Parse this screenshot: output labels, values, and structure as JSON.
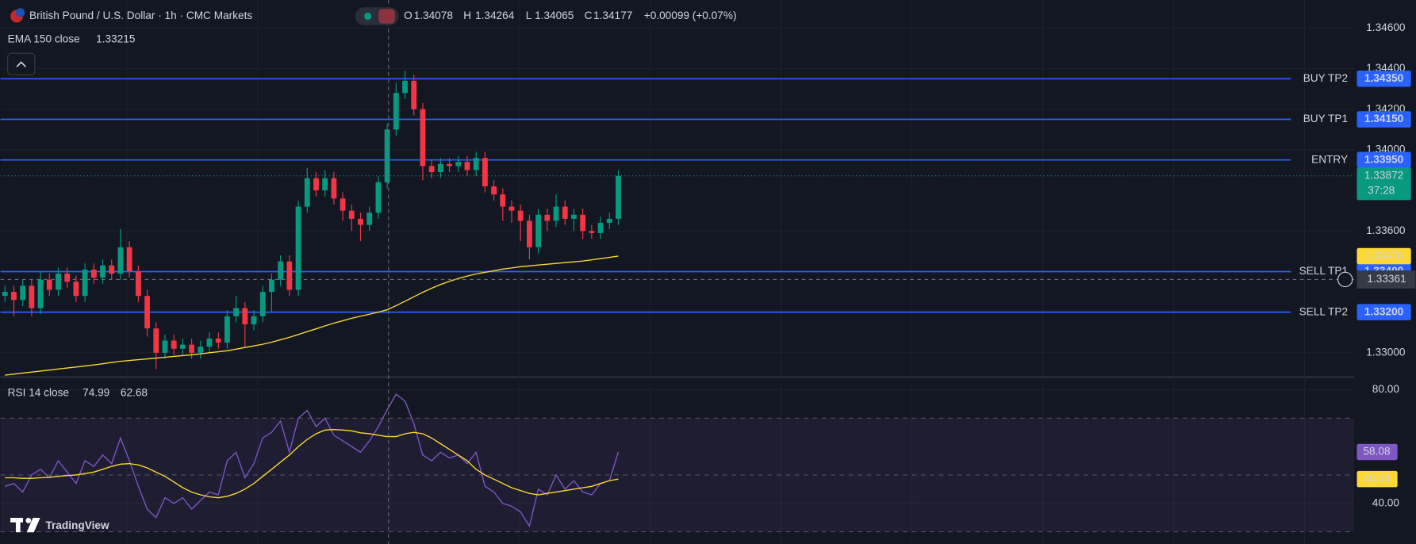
{
  "header": {
    "symbol": "British Pound / U.S. Dollar · 1h · CMC Markets",
    "ohlc": [
      {
        "label": "O",
        "value": "1.34078"
      },
      {
        "label": "H",
        "value": "1.34264"
      },
      {
        "label": "L",
        "value": "1.34065"
      },
      {
        "label": "C",
        "value": "1.34177"
      }
    ],
    "change": "+0.00099 (+0.07%)"
  },
  "indicators": {
    "ema_label": "EMA 150 close",
    "ema_value": "1.33215",
    "rsi_label": "RSI 14 close",
    "rsi_value": "74.99",
    "rsi_ma_value": "62.68"
  },
  "logo": "TradingView",
  "chart_data": {
    "type": "candlestick",
    "ylim": [
      1.32889,
      1.34738
    ],
    "yticks": [
      {
        "value": 1.346,
        "label": "1.34600"
      },
      {
        "value": 1.344,
        "label": "1.34400"
      },
      {
        "value": 1.342,
        "label": "1.34200"
      },
      {
        "value": 1.34,
        "label": "1.34000"
      },
      {
        "value": 1.336,
        "label": "1.33600"
      },
      {
        "value": 1.33,
        "label": "1.33000"
      }
    ],
    "up_color": "#089981",
    "down_color": "#f23645",
    "open": [
      1.3328,
      1.333,
      1.3326,
      1.3333,
      1.3322,
      1.3336,
      1.3331,
      1.3339,
      1.3335,
      1.3328,
      1.3341,
      1.3337,
      1.3343,
      1.3339,
      1.3352,
      1.334,
      1.3328,
      1.3312,
      1.33,
      1.3306,
      1.3302,
      1.3304,
      1.33,
      1.3303,
      1.3307,
      1.3305,
      1.3318,
      1.3322,
      1.3314,
      1.3318,
      1.333,
      1.3336,
      1.3345,
      1.3331,
      1.3372,
      1.3386,
      1.338,
      1.3386,
      1.3376,
      1.337,
      1.3366,
      1.3363,
      1.3369,
      1.3384,
      1.341,
      1.3428,
      1.3434,
      1.342,
      1.3392,
      1.3389,
      1.3393,
      1.3392,
      1.3394,
      1.339,
      1.3396,
      1.3382,
      1.3378,
      1.3372,
      1.337,
      1.3365,
      1.3352,
      1.3368,
      1.3365,
      1.3372,
      1.3366,
      1.3368,
      1.336,
      1.3359,
      1.3364,
      1.3366
    ],
    "high": [
      1.3333,
      1.3333,
      1.3336,
      1.3336,
      1.334,
      1.3339,
      1.3342,
      1.3342,
      1.3338,
      1.3344,
      1.3344,
      1.3346,
      1.3346,
      1.3361,
      1.3355,
      1.3343,
      1.3331,
      1.3315,
      1.3309,
      1.3309,
      1.3307,
      1.3307,
      1.3306,
      1.331,
      1.331,
      1.3321,
      1.3328,
      1.3325,
      1.3321,
      1.3333,
      1.3339,
      1.3348,
      1.3348,
      1.3375,
      1.3391,
      1.3389,
      1.339,
      1.3389,
      1.3379,
      1.3373,
      1.3369,
      1.3372,
      1.3387,
      1.3413,
      1.3433,
      1.3439,
      1.3437,
      1.3423,
      1.3395,
      1.3396,
      1.3396,
      1.3397,
      1.3397,
      1.3399,
      1.3399,
      1.3385,
      1.3381,
      1.3375,
      1.3373,
      1.3368,
      1.3371,
      1.3371,
      1.3378,
      1.3375,
      1.3371,
      1.3371,
      1.3363,
      1.3367,
      1.3369,
      1.339
    ],
    "low": [
      1.3325,
      1.3318,
      1.3323,
      1.3318,
      1.3319,
      1.3328,
      1.3328,
      1.3332,
      1.3325,
      1.3325,
      1.3334,
      1.3334,
      1.3336,
      1.3336,
      1.3337,
      1.3325,
      1.3308,
      1.3292,
      1.3297,
      1.3299,
      1.3299,
      1.3297,
      1.3297,
      1.33,
      1.3302,
      1.3302,
      1.3315,
      1.3303,
      1.3311,
      1.3315,
      1.332,
      1.3333,
      1.3328,
      1.3328,
      1.3369,
      1.3377,
      1.3377,
      1.3373,
      1.3365,
      1.336,
      1.3355,
      1.336,
      1.3366,
      1.3381,
      1.3407,
      1.3425,
      1.3417,
      1.3385,
      1.3386,
      1.3386,
      1.3389,
      1.3389,
      1.3387,
      1.3387,
      1.3379,
      1.3375,
      1.3365,
      1.3364,
      1.3355,
      1.3346,
      1.3349,
      1.336,
      1.3362,
      1.3363,
      1.336,
      1.3356,
      1.3356,
      1.3356,
      1.3361,
      1.3363
    ],
    "close": [
      1.333,
      1.3326,
      1.3333,
      1.3322,
      1.3336,
      1.3331,
      1.3339,
      1.3335,
      1.3328,
      1.3341,
      1.3337,
      1.3343,
      1.3339,
      1.3352,
      1.334,
      1.3328,
      1.3312,
      1.33,
      1.3306,
      1.3302,
      1.3304,
      1.33,
      1.3303,
      1.3307,
      1.3305,
      1.3318,
      1.3322,
      1.3314,
      1.3318,
      1.333,
      1.3336,
      1.3345,
      1.3331,
      1.3372,
      1.3386,
      1.338,
      1.3386,
      1.3376,
      1.337,
      1.3366,
      1.3363,
      1.3369,
      1.3384,
      1.341,
      1.3428,
      1.3434,
      1.342,
      1.3392,
      1.3389,
      1.3393,
      1.3392,
      1.3394,
      1.339,
      1.3396,
      1.3382,
      1.3378,
      1.3372,
      1.337,
      1.3365,
      1.3352,
      1.3368,
      1.3365,
      1.3372,
      1.3366,
      1.3368,
      1.336,
      1.3359,
      1.3364,
      1.3366,
      1.33872
    ],
    "countdown": "37:28",
    "ema": {
      "color": "#fdd835",
      "values": [
        1.3289,
        1.32895,
        1.329,
        1.32905,
        1.3291,
        1.32915,
        1.3292,
        1.32925,
        1.3293,
        1.32935,
        1.3294,
        1.32946,
        1.32952,
        1.32958,
        1.32962,
        1.32966,
        1.3297,
        1.32974,
        1.32978,
        1.32982,
        1.32986,
        1.3299,
        1.32995,
        1.33,
        1.33005,
        1.3301,
        1.33018,
        1.33026,
        1.33034,
        1.33042,
        1.33052,
        1.33064,
        1.33076,
        1.3309,
        1.33104,
        1.33118,
        1.33132,
        1.33146,
        1.33158,
        1.3317,
        1.3318,
        1.3319,
        1.332,
        1.33212,
        1.33232,
        1.33254,
        1.33276,
        1.33298,
        1.33318,
        1.33336,
        1.33352,
        1.33366,
        1.33378,
        1.33388,
        1.33396,
        1.33404,
        1.33412,
        1.33418,
        1.33424,
        1.33428,
        1.33432,
        1.33436,
        1.3344,
        1.33444,
        1.33448,
        1.33452,
        1.33458,
        1.33464,
        1.3347,
        1.33476
      ]
    },
    "levels": [
      {
        "name": "BUY TP2",
        "value": 1.3435,
        "value_label": "1.34350",
        "color": "#4caf50"
      },
      {
        "name": "BUY TP1",
        "value": 1.3415,
        "value_label": "1.34150",
        "color": "#4caf50"
      },
      {
        "name": "ENTRY",
        "value": 1.3395,
        "value_label": "1.33950",
        "color": "#ffeb3b"
      },
      {
        "name": "SELL TP1",
        "value": 1.334,
        "value_label": "1.33400",
        "color": "#f23645"
      },
      {
        "name": "SELL TP2",
        "value": 1.332,
        "value_label": "1.33200",
        "color": "#f23645"
      }
    ],
    "level_line_color": "#2962ff",
    "crosshair": 1.33361,
    "rsi": {
      "ylim": [
        25.7,
        83.8
      ],
      "yticks": [
        {
          "value": 80,
          "label": "80.00"
        },
        {
          "value": 40,
          "label": "40.00"
        }
      ],
      "bands": [
        70,
        50,
        30
      ],
      "color": "#7e57c2",
      "ma_color": "#fdd835",
      "values": [
        46,
        47,
        44,
        50,
        52,
        49,
        55,
        51,
        47,
        55,
        53,
        57,
        54,
        63,
        55,
        46,
        38,
        35,
        42,
        40,
        42,
        38,
        41,
        44,
        43,
        55,
        58,
        49,
        54,
        63,
        65,
        69,
        58,
        70,
        72.7,
        67,
        70,
        64,
        62,
        60,
        58,
        62,
        67,
        73,
        78.4,
        76,
        68,
        57,
        55,
        58,
        56,
        57,
        54,
        58,
        46,
        44,
        40,
        39,
        37,
        32,
        45,
        43,
        50,
        45,
        48,
        44,
        43,
        47,
        48,
        58.08
      ],
      "ma": [
        49.0,
        49.0,
        48.8,
        48.8,
        49.0,
        49.2,
        49.5,
        49.8,
        50.0,
        50.5,
        51.0,
        52.0,
        53.0,
        53.8,
        54.0,
        53.5,
        52.5,
        51.0,
        49.5,
        47.5,
        45.5,
        44.0,
        43.0,
        42.3,
        42.0,
        42.5,
        43.5,
        45.0,
        47.0,
        49.5,
        52.0,
        54.5,
        57.0,
        60.0,
        62.5,
        64.5,
        65.8,
        66.0,
        65.8,
        65.5,
        64.8,
        64.5,
        64.0,
        63.5,
        63.5,
        64.5,
        65.0,
        64.5,
        63.0,
        61.0,
        59.0,
        57.0,
        55.0,
        52.0,
        50.0,
        48.5,
        47.0,
        45.5,
        44.5,
        43.5,
        43.0,
        43.5,
        44.0,
        44.5,
        45.0,
        45.5,
        46.0,
        47.0,
        48.0,
        48.54
      ]
    }
  }
}
